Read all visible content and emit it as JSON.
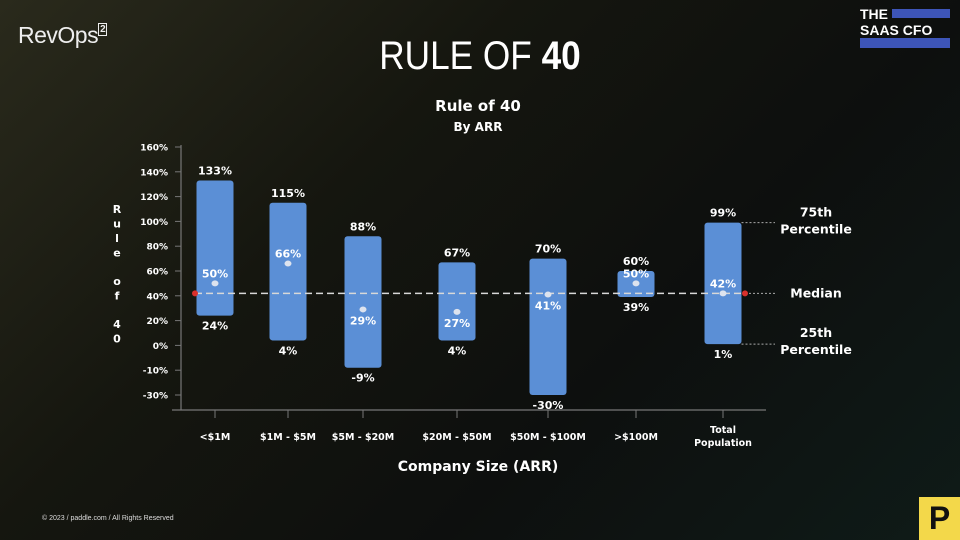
{
  "header": {
    "brand": "RevOps",
    "brand_superscript": "2",
    "title_light": "RULE OF",
    "title_bold": "40",
    "partner_logo_line1": "THE",
    "partner_logo_line2": "SAAS CFO"
  },
  "footer": {
    "copyright": "© 2023 / paddle.com / All Rights Reserved",
    "paddle_logo": "P"
  },
  "colors": {
    "bar": "#5b8fd6",
    "median_line": "#d8d8d8",
    "median_marker": "#d9302c",
    "partner_blue": "#3d55b8",
    "paddle_yellow": "#f3d84a"
  },
  "chart_data": {
    "type": "range-bar",
    "title": "Rule of 40",
    "subtitle": "By ARR",
    "xlabel": "Company Size (ARR)",
    "ylabel": "Rule of 40",
    "y_ticks": [
      "160%",
      "140%",
      "120%",
      "100%",
      "80%",
      "60%",
      "40%",
      "20%",
      "0%",
      "-10%",
      "-30%"
    ],
    "y_tick_values": [
      160,
      140,
      120,
      100,
      80,
      60,
      40,
      20,
      0,
      -10,
      -30
    ],
    "categories": [
      "<$1M",
      "$1M - $5M",
      "$5M - $20M",
      "$20M - $50M",
      "$50M - $100M",
      ">$100M",
      "Total Population"
    ],
    "series": [
      {
        "name": "75th Percentile",
        "values": [
          133,
          115,
          88,
          67,
          70,
          60,
          99
        ]
      },
      {
        "name": "Median",
        "values": [
          50,
          66,
          29,
          27,
          41,
          50,
          42
        ]
      },
      {
        "name": "25th Percentile",
        "values": [
          24,
          4,
          -9,
          4,
          -30,
          39,
          1
        ]
      }
    ],
    "reference_line": {
      "value": 42,
      "label": "Median"
    },
    "annotations": [
      "75th Percentile",
      "Median",
      "25th Percentile"
    ],
    "legend": "right"
  }
}
